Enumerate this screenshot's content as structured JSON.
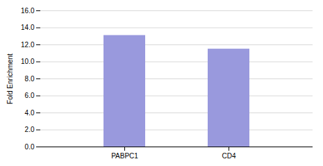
{
  "chart_data": {
    "type": "bar",
    "categories": [
      "PABPC1",
      "CD4"
    ],
    "values": [
      13.1,
      11.5
    ],
    "color": "#9999dd",
    "ylabel": "Fold Enrichment",
    "ylim": [
      0,
      16.0
    ],
    "yticks": [
      {
        "value": 0.0,
        "label": "0.0"
      },
      {
        "value": 2.0,
        "label": "2.0"
      },
      {
        "value": 4.0,
        "label": "4.0"
      },
      {
        "value": 6.0,
        "label": "6.0"
      },
      {
        "value": 8.0,
        "label": "8.0"
      },
      {
        "value": 10.0,
        "label": "10.0"
      },
      {
        "value": 12.0,
        "label": "12.0"
      },
      {
        "value": 14.0,
        "label": "14.0"
      },
      {
        "value": 16.0,
        "label": "16.0"
      }
    ],
    "grid": true
  }
}
